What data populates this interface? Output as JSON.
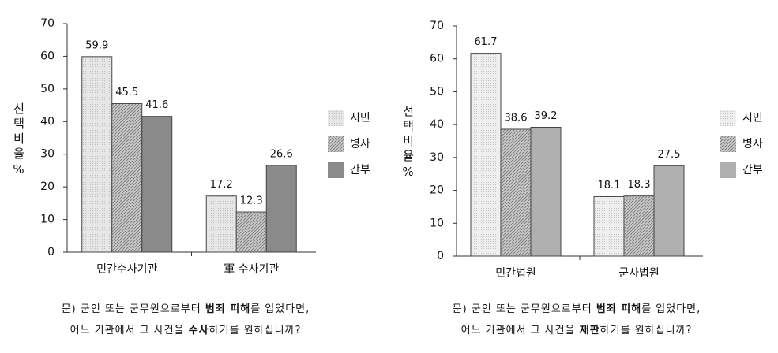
{
  "chart_data": [
    {
      "type": "bar",
      "y_label": "선택비율%",
      "categories": [
        "민간수사기관",
        "軍 수사기관"
      ],
      "series": [
        {
          "name": "시민",
          "color": "#e6e6e6",
          "values": [
            59.9,
            17.2
          ]
        },
        {
          "name": "병사",
          "color": "#c6c6c6",
          "values": [
            45.5,
            12.3
          ]
        },
        {
          "name": "간부",
          "color": "#8a8a8a",
          "values": [
            41.6,
            26.6
          ]
        }
      ],
      "ylim": [
        0,
        70
      ],
      "yticks": [
        0,
        10,
        20,
        30,
        40,
        50,
        60,
        70
      ],
      "caption_lines": [
        [
          "문) 군인 또는 군무원으로부터 ",
          "범죄 피해",
          "를 입었다면,"
        ],
        [
          "어느 기관에서 그 사건을 ",
          "수사",
          "하기를 원하십니까?"
        ]
      ]
    },
    {
      "type": "bar",
      "y_label": "선택비율%",
      "categories": [
        "민간법원",
        "군사법원"
      ],
      "series": [
        {
          "name": "시민",
          "color": "#eeeeee",
          "values": [
            61.7,
            18.1
          ]
        },
        {
          "name": "병사",
          "color": "#c6c6c6",
          "values": [
            38.6,
            18.3
          ]
        },
        {
          "name": "간부",
          "color": "#b0b0b0",
          "values": [
            39.2,
            27.5
          ]
        }
      ],
      "ylim": [
        0,
        70
      ],
      "yticks": [
        0,
        10,
        20,
        30,
        40,
        50,
        60,
        70
      ],
      "caption_lines": [
        [
          "문) 군인 또는 군무원으로부터 ",
          "범죄 피해",
          "를 입었다면,"
        ],
        [
          "어느 기관에서 그 사건을 ",
          "재판",
          "하기를 원하십니까?"
        ]
      ]
    }
  ]
}
